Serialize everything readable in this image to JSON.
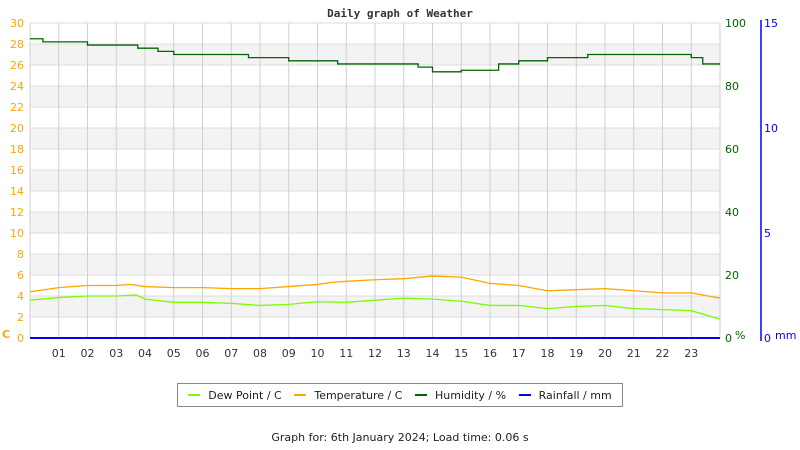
{
  "chart_data": {
    "type": "line",
    "title": "Daily graph of Weather",
    "x_ticks": [
      "01",
      "02",
      "03",
      "04",
      "05",
      "06",
      "07",
      "08",
      "09",
      "10",
      "11",
      "12",
      "13",
      "14",
      "15",
      "16",
      "17",
      "18",
      "19",
      "20",
      "21",
      "22",
      "23"
    ],
    "x_range_hours": [
      0,
      24
    ],
    "grid": true,
    "legend_placement": "bottom",
    "axes": {
      "temperature": {
        "unit_label": "C",
        "range": [
          0,
          30
        ],
        "ticks": [
          "0",
          "2",
          "4",
          "6",
          "8",
          "10",
          "12",
          "14",
          "16",
          "18",
          "20",
          "22",
          "24",
          "26",
          "28",
          "30"
        ],
        "color": "#ffa500",
        "side": "left"
      },
      "humidity": {
        "unit_label": "%",
        "range": [
          0,
          100
        ],
        "ticks": [
          "0",
          "20",
          "40",
          "60",
          "80",
          "100"
        ],
        "color": "#006400",
        "side": "right"
      },
      "rainfall": {
        "unit_label": "mm",
        "range": [
          0,
          15
        ],
        "ticks": [
          "0",
          "5",
          "10",
          "15"
        ],
        "color": "#0000ff",
        "side": "right"
      }
    },
    "series": [
      {
        "name": "Dew Point / C",
        "axis": "temperature",
        "color": "#7cfc00",
        "x": [
          0,
          1,
          2,
          3,
          3.7,
          4,
          5,
          6,
          7,
          8,
          9,
          10,
          11,
          12,
          13,
          14,
          15,
          16,
          17,
          18,
          19,
          20,
          21,
          22,
          23,
          24
        ],
        "y": [
          3.6,
          3.85,
          4.0,
          4.0,
          4.1,
          3.7,
          3.4,
          3.4,
          3.3,
          3.1,
          3.2,
          3.45,
          3.4,
          3.6,
          3.8,
          3.7,
          3.5,
          3.1,
          3.1,
          2.8,
          3.0,
          3.1,
          2.8,
          2.7,
          2.6,
          1.8
        ]
      },
      {
        "name": "Temperature / C",
        "axis": "temperature",
        "color": "#ffa500",
        "x": [
          0,
          1,
          2,
          3,
          3.5,
          4,
          5,
          6,
          7,
          8,
          9,
          10,
          10.5,
          11,
          12,
          13,
          14,
          15,
          16,
          17,
          18,
          19,
          20,
          21,
          22,
          23,
          24
        ],
        "y": [
          4.4,
          4.8,
          5.0,
          5.0,
          5.1,
          4.9,
          4.8,
          4.8,
          4.7,
          4.7,
          4.9,
          5.1,
          5.3,
          5.4,
          5.55,
          5.65,
          5.9,
          5.8,
          5.2,
          5.0,
          4.5,
          4.6,
          4.7,
          4.5,
          4.3,
          4.3,
          3.8
        ]
      },
      {
        "name": "Humidity / %",
        "axis": "humidity",
        "color": "#006400",
        "step": true,
        "x": [
          0,
          0.45,
          2.0,
          3.75,
          4.45,
          5.0,
          7.6,
          9.0,
          10.7,
          13.5,
          14.0,
          15.0,
          16.3,
          17.0,
          18.0,
          19.4,
          23.0,
          23.4,
          24
        ],
        "y": [
          95,
          94,
          93,
          92,
          91,
          90,
          89,
          88,
          87,
          86,
          84.5,
          85,
          87,
          88,
          89,
          90,
          89,
          87,
          87
        ]
      },
      {
        "name": "Rainfall / mm",
        "axis": "rainfall",
        "color": "#0000ff",
        "x": [
          0,
          24
        ],
        "y": [
          0,
          0
        ]
      }
    ]
  },
  "footer": "Graph for: 6th January 2024; Load time: 0.06 s"
}
